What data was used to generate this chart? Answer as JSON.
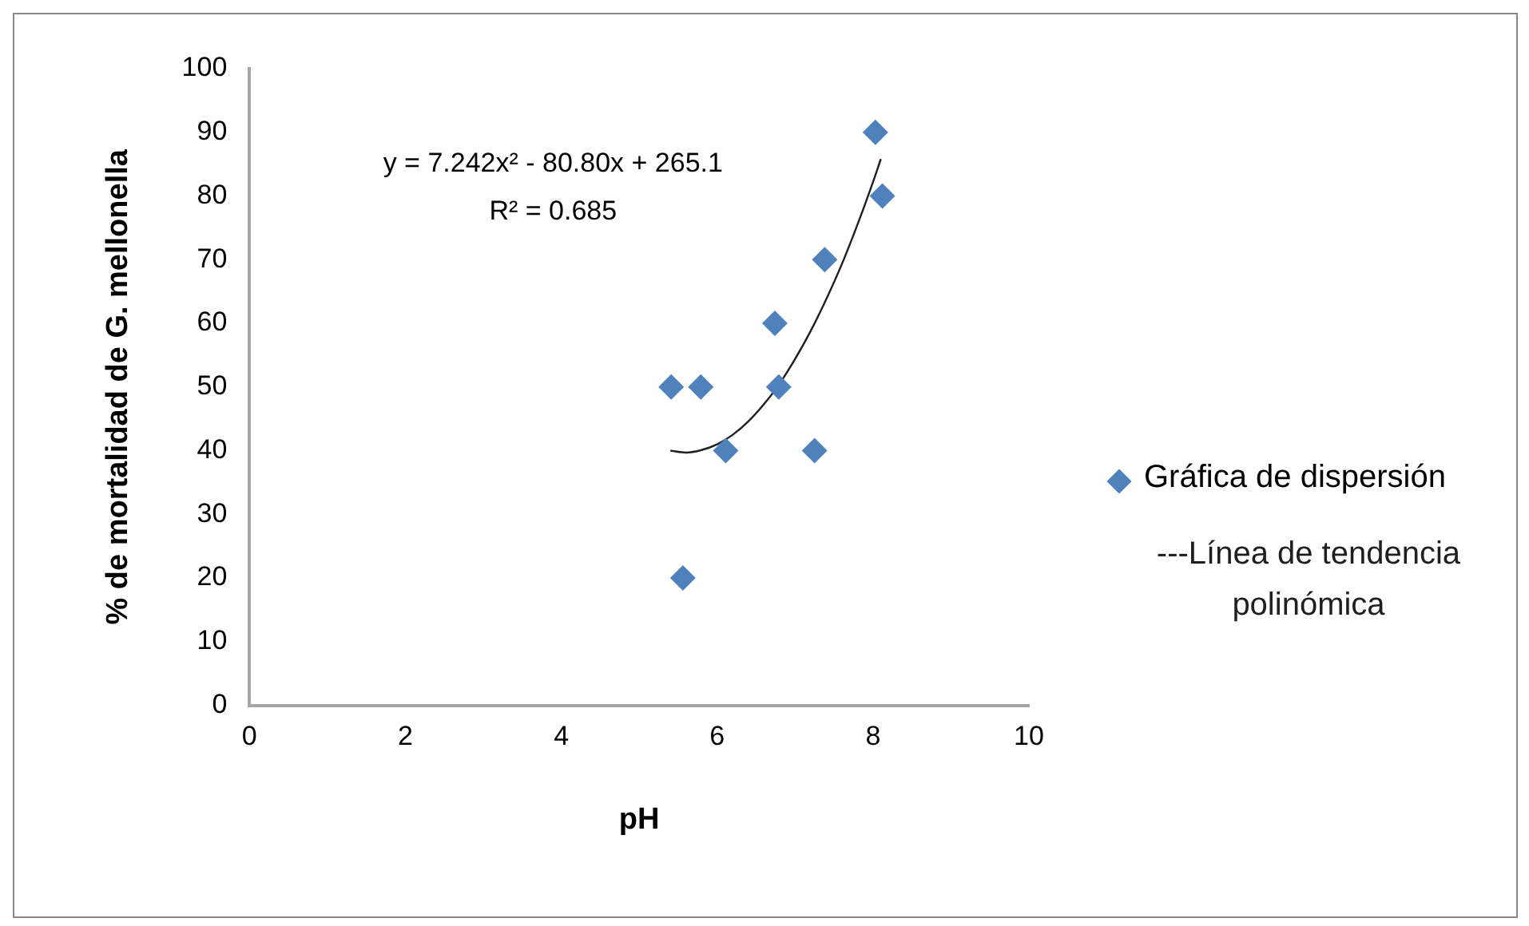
{
  "chart_data": {
    "type": "scatter",
    "xlabel": "pH",
    "ylabel": "% de mortalidad de G. mellonella",
    "xlim": [
      0,
      10
    ],
    "xticks": [
      0,
      2,
      4,
      6,
      8,
      10
    ],
    "ylim": [
      0,
      100
    ],
    "yticks": [
      0,
      10,
      20,
      30,
      40,
      50,
      60,
      70,
      80,
      90,
      100
    ],
    "grid": false,
    "legend": "right",
    "marker": "diamond",
    "annotations": [
      "y = 7.242x² - 80.80x + 265.1",
      "R² = 0.685"
    ],
    "series": [
      {
        "name": "Gráfica de dispersión",
        "color": "#4f81bd",
        "x": [
          5.41,
          5.79,
          5.56,
          6.11,
          6.74,
          6.79,
          7.25,
          7.38,
          8.03,
          8.12
        ],
        "values": [
          50,
          50,
          20,
          40,
          60,
          50,
          40,
          70,
          90,
          80
        ]
      },
      {
        "name": "---Línea de tendencia polinómica",
        "type": "line",
        "color": "#1f1f1f",
        "line_style": "solid",
        "marker": "none",
        "x": [
          5.4,
          5.6,
          5.8,
          6.0,
          6.2,
          6.4,
          6.6,
          6.8,
          7.0,
          7.2,
          7.4,
          7.6,
          7.8,
          8.0,
          8.1
        ],
        "values": [
          40,
          39.7,
          40.1,
          41,
          42.5,
          44.6,
          47.3,
          50.5,
          54.4,
          58.8,
          63.8,
          69.3,
          75.5,
          82.2,
          85.8
        ]
      }
    ]
  }
}
